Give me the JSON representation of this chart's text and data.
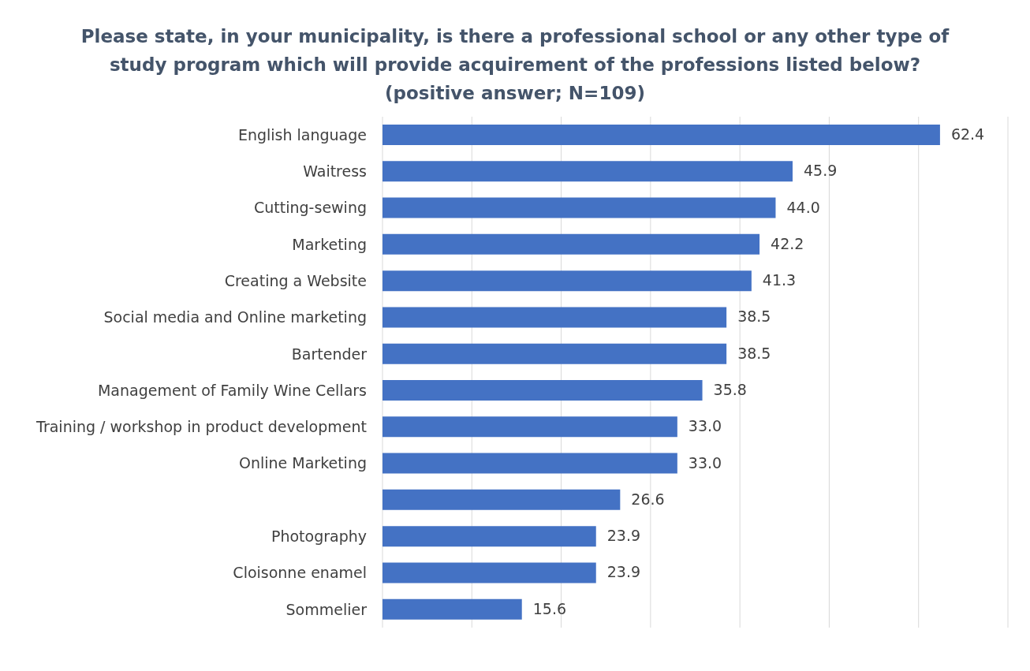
{
  "chart_data": {
    "type": "bar",
    "orientation": "horizontal",
    "title": "Please state, in your municipality, is there a professional school or any other type of study program which will provide acquirement of the professions listed below?",
    "subtitle": "(positive answer; N=109)",
    "categories": [
      "English language",
      "Waitress",
      "Cutting-sewing",
      "Marketing",
      "Creating a Website",
      "Social media and Online marketing",
      "Bartender",
      "Management of Family Wine Cellars",
      "Training / workshop in product development",
      "Online Marketing",
      null,
      "Photography",
      "Cloisonne enamel",
      "Sommelier"
    ],
    "values": [
      62.4,
      45.9,
      44.0,
      42.2,
      41.3,
      38.5,
      38.5,
      35.8,
      33.0,
      33.0,
      26.6,
      23.9,
      23.9,
      15.6
    ],
    "value_labels": [
      "62.4",
      "45.9",
      "44.0",
      "42.2",
      "41.3",
      "38.5",
      "38.5",
      "35.8",
      "33.0",
      "33.0",
      "26.6",
      "23.9",
      "23.9",
      "15.6"
    ],
    "color": "#4472c4",
    "xlim": [
      0,
      70
    ],
    "tick_labels": "y",
    "grid": "x"
  }
}
